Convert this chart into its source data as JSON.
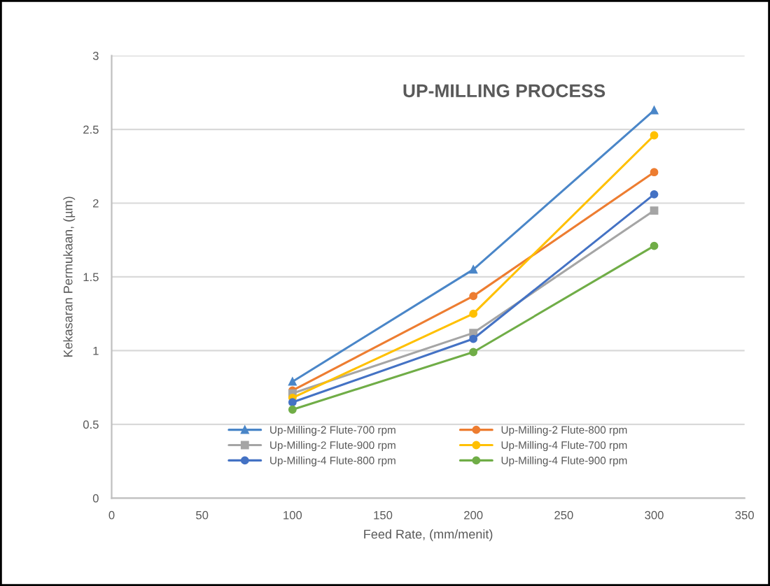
{
  "chart_data": {
    "type": "line",
    "title": "UP-MILLING PROCESS",
    "xlabel": "Feed Rate, (mm/menit)",
    "ylabel": "Kekasaran Permukaan, (µm)",
    "x": [
      100,
      200,
      300
    ],
    "series": [
      {
        "name": "Up-Milling-2 Flute-700 rpm",
        "color": "#4a86c8",
        "marker": "triangle",
        "values": [
          0.79,
          1.55,
          2.63
        ]
      },
      {
        "name": "Up-Milling-2 Flute-800 rpm",
        "color": "#ed7d31",
        "marker": "circle",
        "values": [
          0.73,
          1.37,
          2.21
        ]
      },
      {
        "name": "Up-Milling-2 Flute-900 rpm",
        "color": "#a5a5a5",
        "marker": "square",
        "values": [
          0.71,
          1.12,
          1.95
        ]
      },
      {
        "name": "Up-Milling-4 Flute-700 rpm",
        "color": "#ffc000",
        "marker": "circle",
        "values": [
          0.68,
          1.25,
          2.46
        ]
      },
      {
        "name": "Up-Milling-4 Flute-800 rpm",
        "color": "#4472c4",
        "marker": "circle",
        "values": [
          0.65,
          1.08,
          2.06
        ]
      },
      {
        "name": "Up-Milling-4 Flute-900 rpm",
        "color": "#70ad47",
        "marker": "circle",
        "values": [
          0.6,
          0.99,
          1.71
        ]
      }
    ],
    "xlim": [
      0,
      350
    ],
    "xticks": [
      0,
      50,
      100,
      150,
      200,
      250,
      300,
      350
    ],
    "ylim": [
      0,
      3
    ],
    "yticks": [
      0,
      0.5,
      1,
      1.5,
      2,
      2.5,
      3
    ],
    "grid": "y",
    "legend": "bottom",
    "line_style": "solid"
  }
}
